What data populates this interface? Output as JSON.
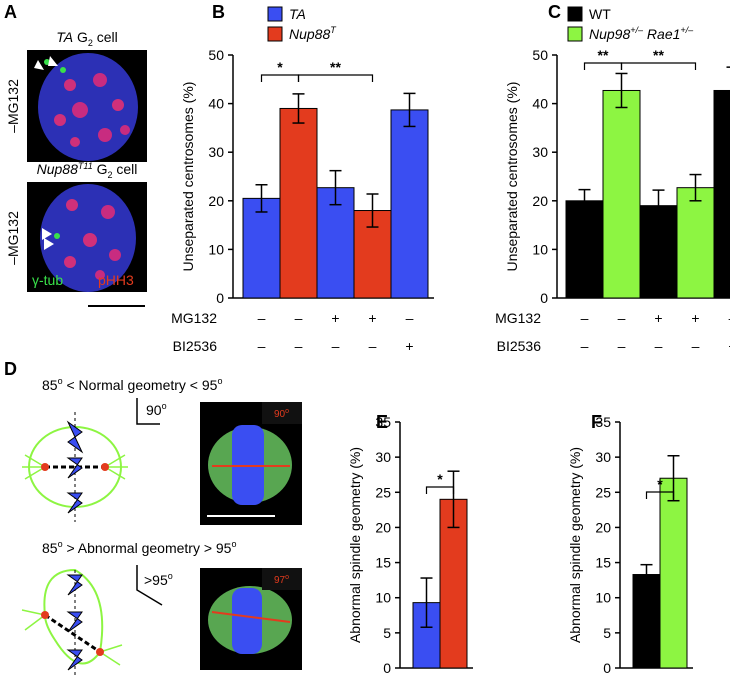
{
  "figure_a": {
    "letter": "A",
    "top_title": [
      "TA",
      " G",
      "2",
      " cell"
    ],
    "top_side": "–MG132",
    "bottom_title": [
      "Nup88",
      "T11",
      " G",
      "2",
      " cell"
    ],
    "bottom_side": "–MG132",
    "stain_1": "γ-tub",
    "stain_2": "pHH3"
  },
  "figure_d": {
    "letter": "D",
    "normal": [
      "85",
      "o",
      " < Normal geometry < 95",
      "o"
    ],
    "normal_angle": [
      "90",
      "o"
    ],
    "normal_image_angle": [
      "90",
      "o"
    ],
    "abnormal": [
      "85",
      "o",
      " > Abnormal geometry > 95",
      "o"
    ],
    "abnormal_angle": [
      ">95",
      "o"
    ],
    "abnormal_image_angle": [
      "97",
      "o"
    ]
  },
  "chart_data": [
    {
      "type": "bar",
      "letter": "B",
      "ylabel": "Unseparated centrosomes (%)",
      "ylim": [
        0,
        50
      ],
      "yticks": [
        0,
        10,
        20,
        30,
        40,
        50
      ],
      "series": [
        {
          "name": [
            "TA"
          ],
          "superscript": [
            false
          ],
          "italic": true,
          "color": "#3a4ef2",
          "values": [
            20.5,
            null,
            22.7,
            null,
            38.7
          ],
          "errors": [
            2.8,
            null,
            3.5,
            null,
            3.4
          ]
        },
        {
          "name": [
            "Nup88",
            "T"
          ],
          "superscript": [
            false,
            true
          ],
          "italic": true,
          "color": "#e33b1e",
          "values": [
            null,
            39,
            null,
            18,
            null
          ],
          "errors": [
            null,
            3,
            null,
            3.4,
            null
          ]
        }
      ],
      "significance": [
        "*",
        "**"
      ],
      "conditions": [
        {
          "label": "MG132",
          "signs": [
            "–",
            "–",
            "+",
            "+",
            "–"
          ]
        },
        {
          "label": "BI2536",
          "signs": [
            "–",
            "–",
            "–",
            "–",
            "+"
          ]
        }
      ]
    },
    {
      "type": "bar",
      "letter": "C",
      "ylabel": "Unseparated centrosomes (%)",
      "ylim": [
        0,
        50
      ],
      "yticks": [
        0,
        10,
        20,
        30,
        40,
        50
      ],
      "series": [
        {
          "name": [
            "WT"
          ],
          "superscript": [
            false
          ],
          "italic": false,
          "color": "#000000",
          "values": [
            20,
            null,
            19,
            null,
            42.7
          ],
          "errors": [
            2.3,
            null,
            3.2,
            null,
            4.8
          ]
        },
        {
          "name": [
            "Nup98",
            "+/–",
            " Rae1",
            "+/–"
          ],
          "superscript": [
            false,
            true,
            false,
            true
          ],
          "italic": true,
          "color": "#8df542",
          "values": [
            null,
            42.7,
            null,
            22.7,
            null
          ],
          "errors": [
            null,
            3.5,
            null,
            2.7,
            null
          ]
        }
      ],
      "significance": [
        "**",
        "**"
      ],
      "conditions": [
        {
          "label": "MG132",
          "signs": [
            "–",
            "–",
            "+",
            "+",
            "–"
          ]
        },
        {
          "label": "BI2536",
          "signs": [
            "–",
            "–",
            "–",
            "–",
            "+"
          ]
        }
      ]
    },
    {
      "type": "bar",
      "letter": "E",
      "ylabel": "Abnormal spindle geometry (%)",
      "ylim": [
        0,
        35
      ],
      "yticks": [
        0,
        5,
        10,
        15,
        20,
        25,
        30,
        35
      ],
      "series": [
        {
          "color": "#3a4ef2",
          "values": [
            9.3,
            null
          ],
          "errors": [
            3.5,
            null
          ]
        },
        {
          "color": "#e33b1e",
          "values": [
            null,
            24
          ],
          "errors": [
            null,
            4
          ]
        }
      ],
      "significance": [
        "*"
      ]
    },
    {
      "type": "bar",
      "letter": "F",
      "ylabel": "Abnormal spindle geometry (%)",
      "ylim": [
        0,
        35
      ],
      "yticks": [
        0,
        5,
        10,
        15,
        20,
        25,
        30,
        35
      ],
      "series": [
        {
          "color": "#000000",
          "values": [
            13.3,
            null
          ],
          "errors": [
            1.4,
            null
          ]
        },
        {
          "color": "#8df542",
          "values": [
            null,
            27
          ],
          "errors": [
            null,
            3.2
          ]
        }
      ],
      "significance": [
        "*"
      ]
    }
  ]
}
